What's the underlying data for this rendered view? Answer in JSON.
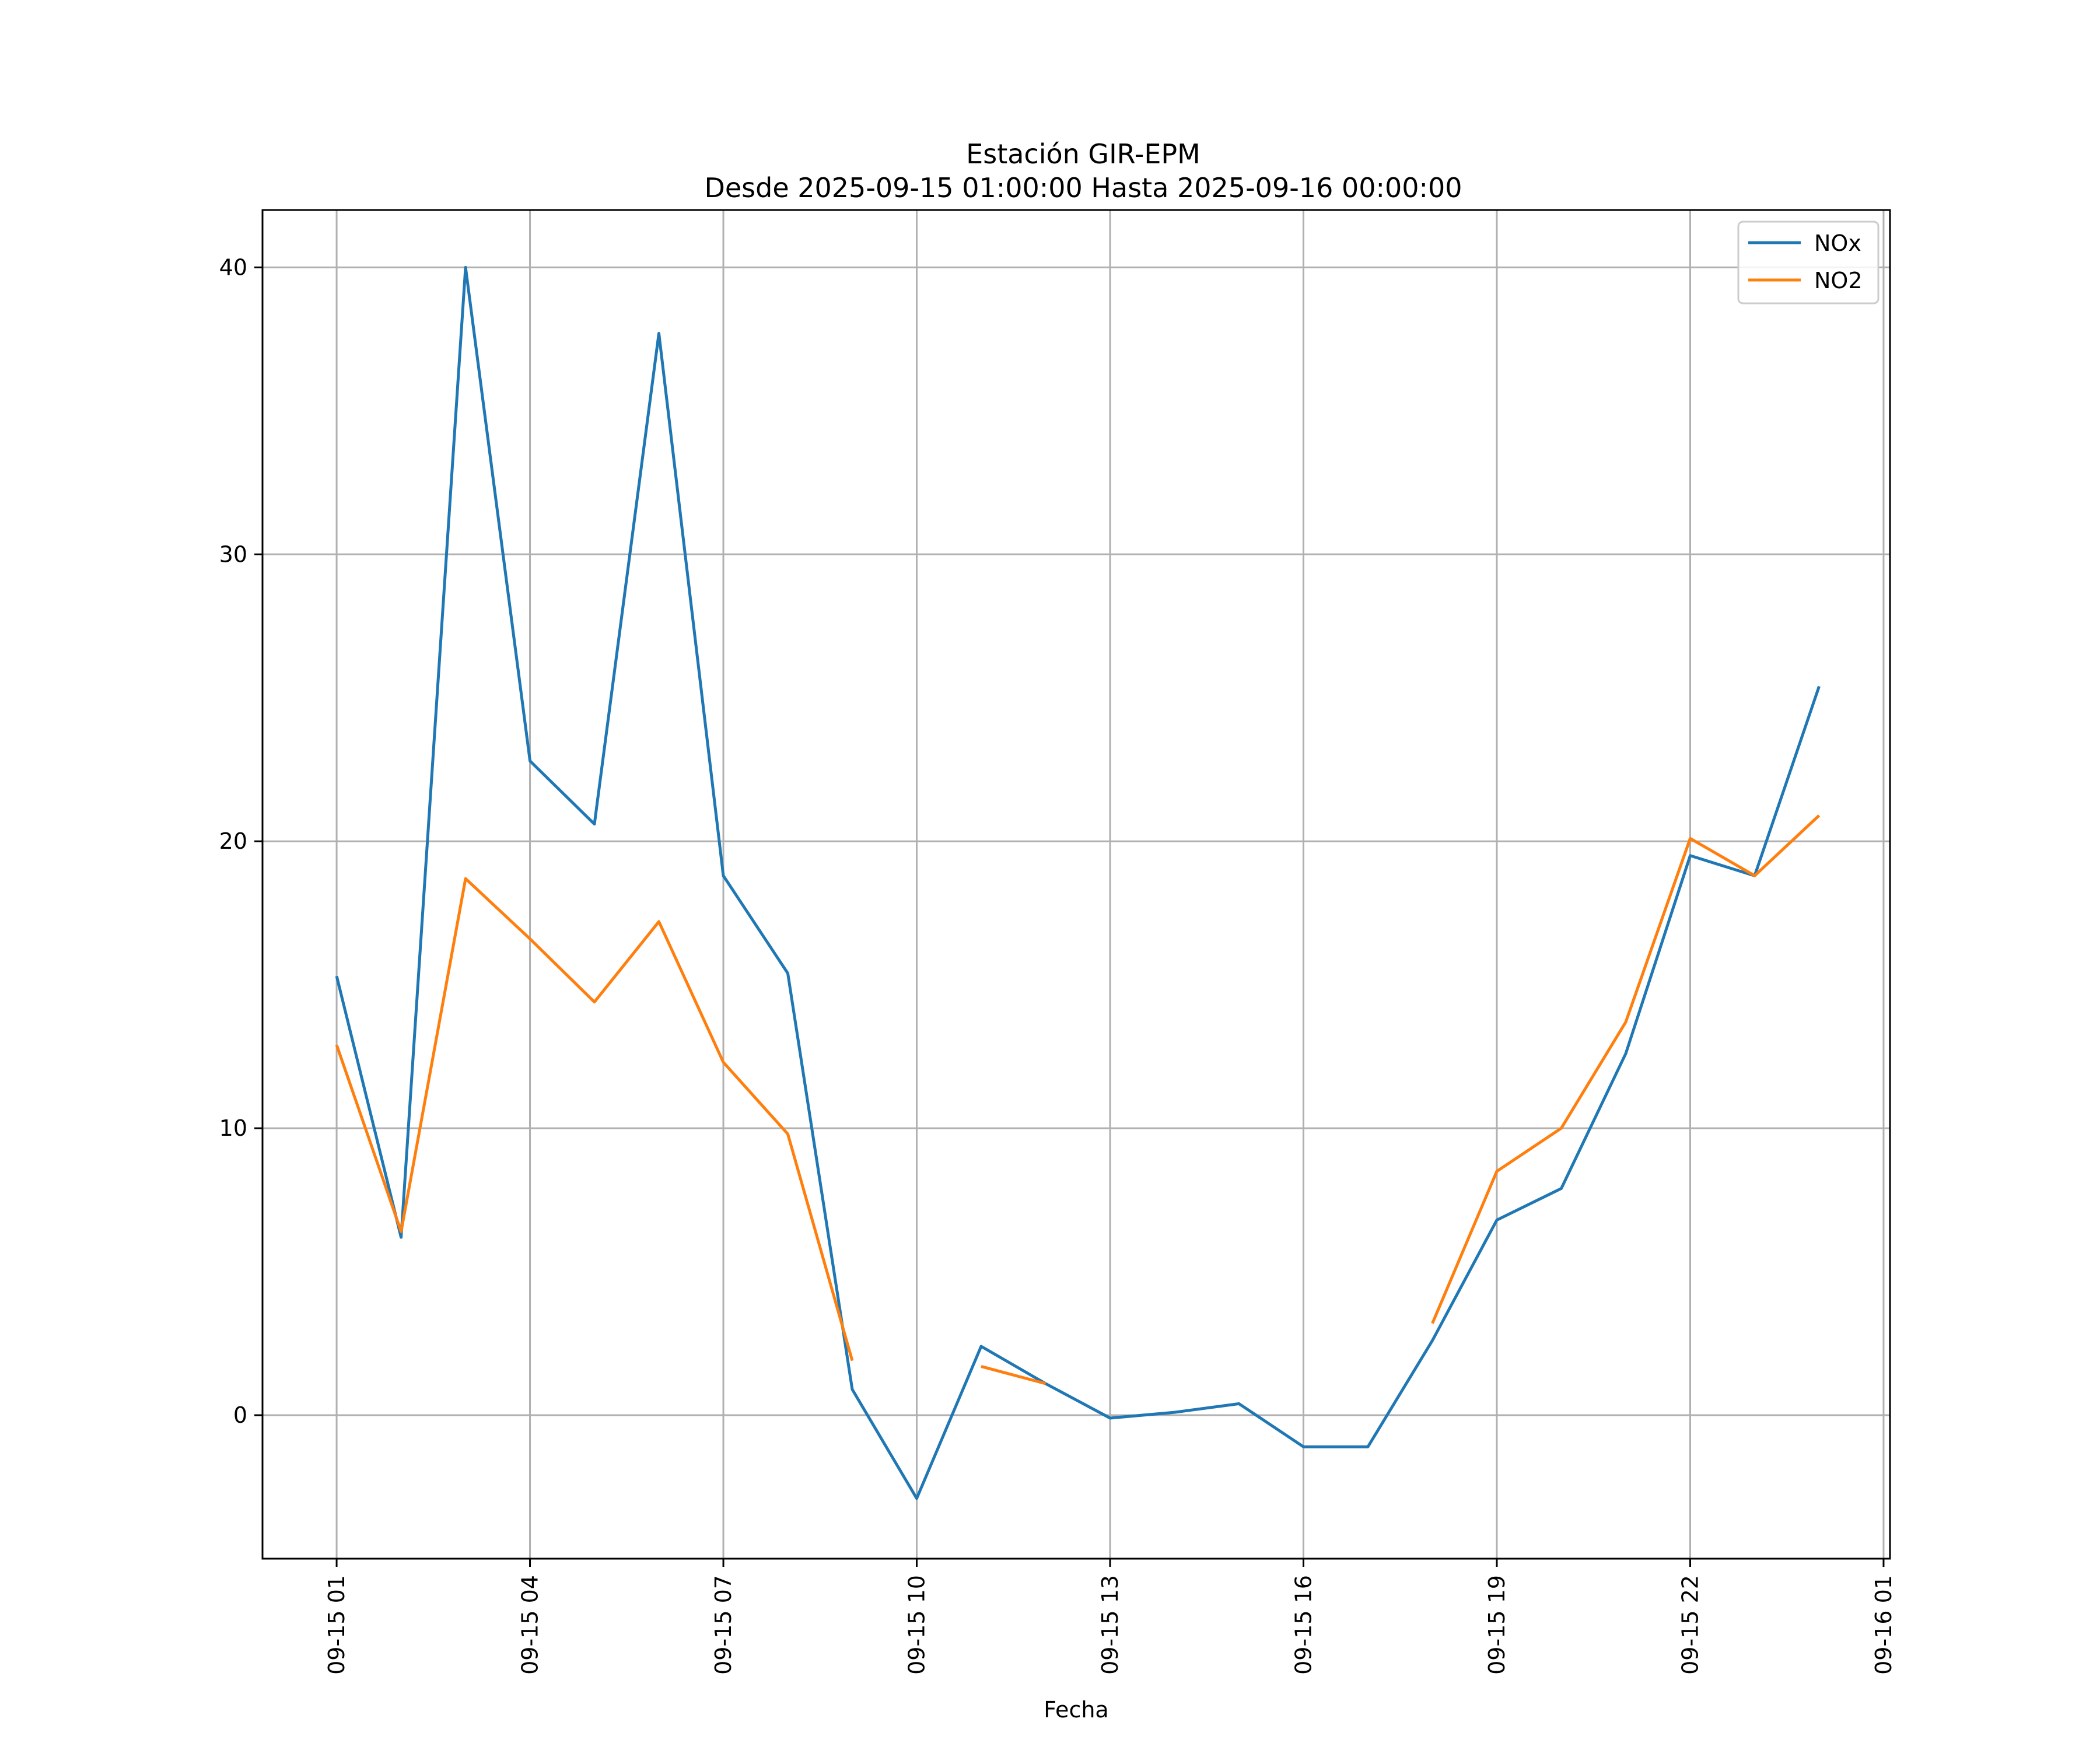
{
  "chart_data": {
    "type": "line",
    "title": "Estación GIR-EPM",
    "subtitle": "Desde 2025-09-15 01:00:00 Hasta 2025-09-16 00:00:00",
    "xlabel": "Fecha",
    "ylabel": "",
    "x": [
      "09-15 01",
      "09-15 02",
      "09-15 03",
      "09-15 04",
      "09-15 05",
      "09-15 06",
      "09-15 07",
      "09-15 08",
      "09-15 09",
      "09-15 10",
      "09-15 11",
      "09-15 12",
      "09-15 13",
      "09-15 14",
      "09-15 15",
      "09-15 16",
      "09-15 17",
      "09-15 18",
      "09-15 19",
      "09-15 20",
      "09-15 21",
      "09-15 22",
      "09-15 23",
      "09-16 00"
    ],
    "x_hours": [
      1,
      2,
      3,
      4,
      5,
      6,
      7,
      8,
      9,
      10,
      11,
      12,
      13,
      14,
      15,
      16,
      17,
      18,
      19,
      20,
      21,
      22,
      23,
      24
    ],
    "xlim_hours": [
      -0.15,
      25.1
    ],
    "ylim": [
      -5,
      42
    ],
    "x_ticks": [
      {
        "hour": 1,
        "label": "09-15 01"
      },
      {
        "hour": 4,
        "label": "09-15 04"
      },
      {
        "hour": 7,
        "label": "09-15 07"
      },
      {
        "hour": 10,
        "label": "09-15 10"
      },
      {
        "hour": 13,
        "label": "09-15 13"
      },
      {
        "hour": 16,
        "label": "09-15 16"
      },
      {
        "hour": 19,
        "label": "09-15 19"
      },
      {
        "hour": 22,
        "label": "09-15 22"
      },
      {
        "hour": 25,
        "label": "09-16 01"
      }
    ],
    "y_ticks": [
      0,
      10,
      20,
      30,
      40
    ],
    "y_tick_labels": [
      "0",
      "10",
      "20",
      "30",
      "40"
    ],
    "grid": true,
    "legend_position": "top-right",
    "series": [
      {
        "name": "NOx",
        "color": "#1f77b4",
        "values": [
          15.3,
          6.2,
          40.0,
          22.8,
          20.6,
          37.7,
          18.8,
          15.4,
          0.9,
          -2.9,
          2.4,
          1.1,
          -0.1,
          0.1,
          0.4,
          -1.1,
          -1.1,
          2.6,
          6.8,
          7.9,
          12.6,
          19.5,
          18.8,
          25.4
        ]
      },
      {
        "name": "NO2",
        "color": "#ff7f0e",
        "values": [
          12.9,
          6.4,
          18.7,
          16.6,
          14.4,
          17.2,
          12.3,
          9.8,
          1.9,
          null,
          1.7,
          1.1,
          null,
          null,
          null,
          null,
          null,
          3.2,
          8.5,
          10.0,
          13.7,
          20.1,
          18.8,
          20.9
        ]
      }
    ]
  }
}
